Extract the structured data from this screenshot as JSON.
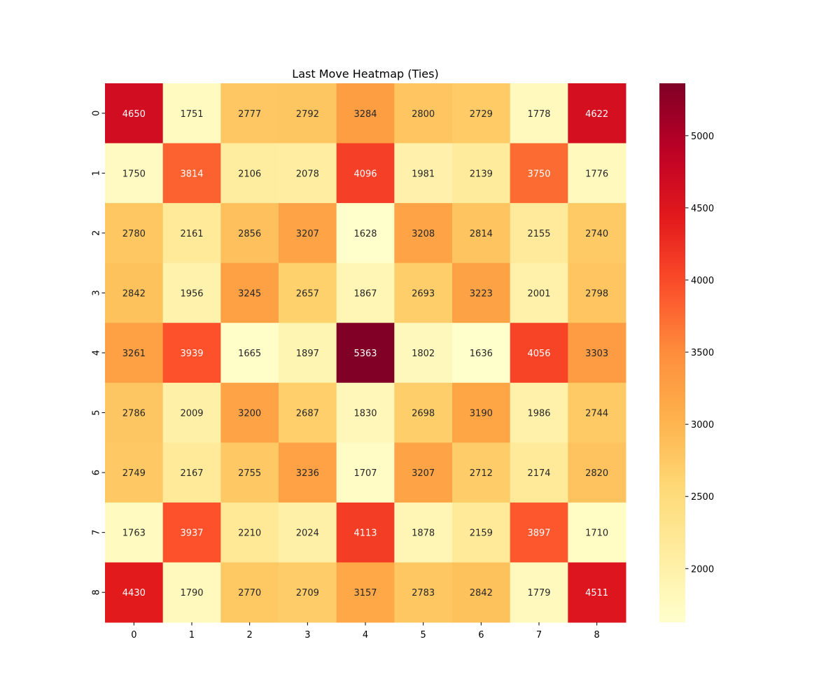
{
  "chart_data": {
    "type": "heatmap",
    "title": "Last Move Heatmap (Ties)",
    "xlabel": "",
    "ylabel": "",
    "x_ticks": [
      "0",
      "1",
      "2",
      "3",
      "4",
      "5",
      "6",
      "7",
      "8"
    ],
    "y_ticks": [
      "0",
      "1",
      "2",
      "3",
      "4",
      "5",
      "6",
      "7",
      "8"
    ],
    "values": [
      [
        4650,
        1751,
        2777,
        2792,
        3284,
        2800,
        2729,
        1778,
        4622
      ],
      [
        1750,
        3814,
        2106,
        2078,
        4096,
        1981,
        2139,
        3750,
        1776
      ],
      [
        2780,
        2161,
        2856,
        3207,
        1628,
        3208,
        2814,
        2155,
        2740
      ],
      [
        2842,
        1956,
        3245,
        2657,
        1867,
        2693,
        3223,
        2001,
        2798
      ],
      [
        3261,
        3939,
        1665,
        1897,
        5363,
        1802,
        1636,
        4056,
        3303
      ],
      [
        2786,
        2009,
        3200,
        2687,
        1830,
        2698,
        3190,
        1986,
        2744
      ],
      [
        2749,
        2167,
        2755,
        3236,
        1707,
        3207,
        2712,
        2174,
        2820
      ],
      [
        1763,
        3937,
        2210,
        2024,
        4113,
        1878,
        2159,
        3897,
        1710
      ],
      [
        4430,
        1790,
        2770,
        2709,
        3157,
        2783,
        2842,
        1779,
        4511
      ]
    ],
    "colormap": "YlOrRd",
    "colorbar": {
      "range": [
        1628,
        5363
      ],
      "ticks": [
        2000,
        2500,
        3000,
        3500,
        4000,
        4500,
        5000
      ],
      "tick_labels": [
        "2000",
        "2500",
        "3000",
        "3500",
        "4000",
        "4500",
        "5000"
      ]
    },
    "annotations": true,
    "grid": false
  }
}
